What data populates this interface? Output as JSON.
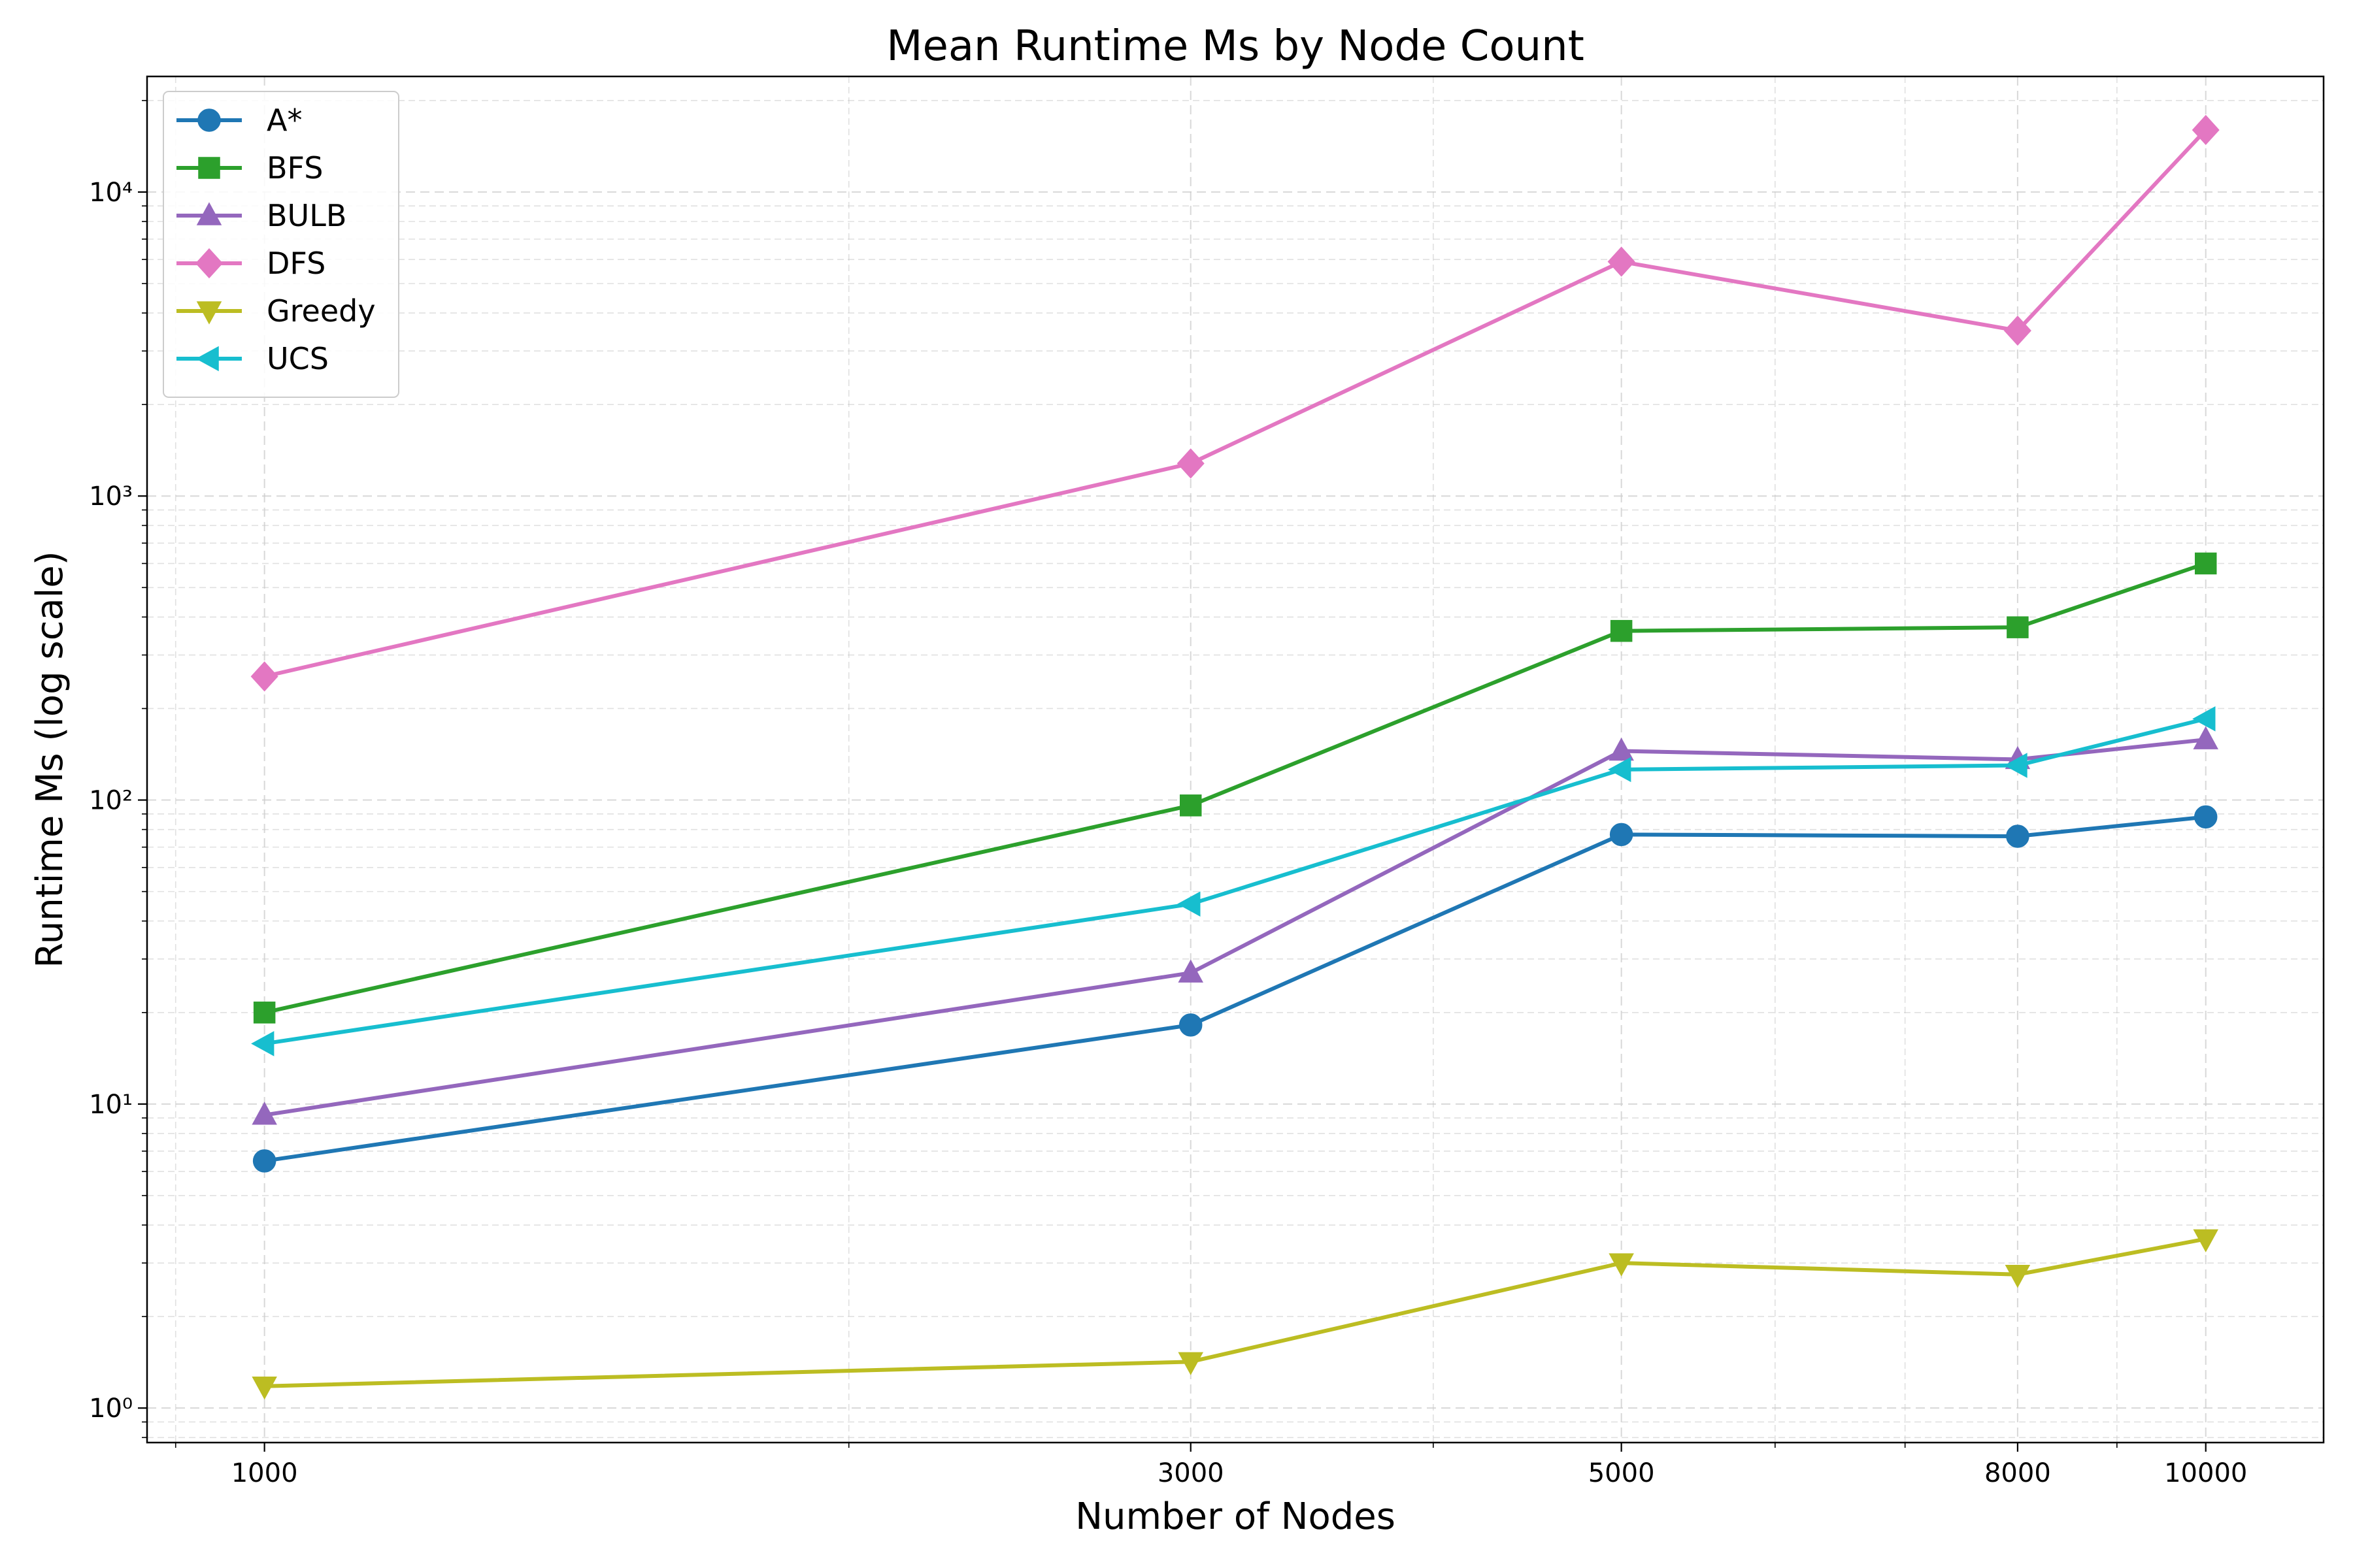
{
  "chart_data": {
    "type": "line",
    "title": "Mean Runtime Ms by Node Count",
    "xlabel": "Number of Nodes",
    "ylabel": "Runtime Ms (log scale)",
    "x": [
      1000,
      3000,
      5000,
      8000,
      10000
    ],
    "x_scale": "log",
    "y_scale": "log",
    "xlim": [
      870,
      11500
    ],
    "ylim": [
      0.77,
      24000
    ],
    "x_ticks": [
      1000,
      3000,
      5000,
      8000,
      10000
    ],
    "x_tick_labels": [
      "1000",
      "3000",
      "5000",
      "8000",
      "10000"
    ],
    "y_ticks": [
      1,
      10,
      100,
      1000,
      10000
    ],
    "grid": true,
    "legend_position": "top-left",
    "series": [
      {
        "name": "A*",
        "color": "#1f77b4",
        "marker": "circle",
        "values": [
          6.5,
          18.2,
          77,
          76,
          88
        ]
      },
      {
        "name": "BFS",
        "color": "#2ca02c",
        "marker": "square",
        "values": [
          20,
          96,
          360,
          370,
          600
        ]
      },
      {
        "name": "BULB",
        "color": "#9467bd",
        "marker": "triangle-up",
        "values": [
          9.2,
          27,
          145,
          136,
          158
        ]
      },
      {
        "name": "DFS",
        "color": "#e377c2",
        "marker": "diamond",
        "values": [
          255,
          1280,
          5900,
          3500,
          16000
        ]
      },
      {
        "name": "Greedy",
        "color": "#bcbd22",
        "marker": "triangle-down",
        "values": [
          1.18,
          1.42,
          3.0,
          2.75,
          3.6
        ]
      },
      {
        "name": "UCS",
        "color": "#17becf",
        "marker": "triangle-left",
        "values": [
          15.8,
          45.5,
          126,
          130,
          185
        ]
      }
    ]
  }
}
